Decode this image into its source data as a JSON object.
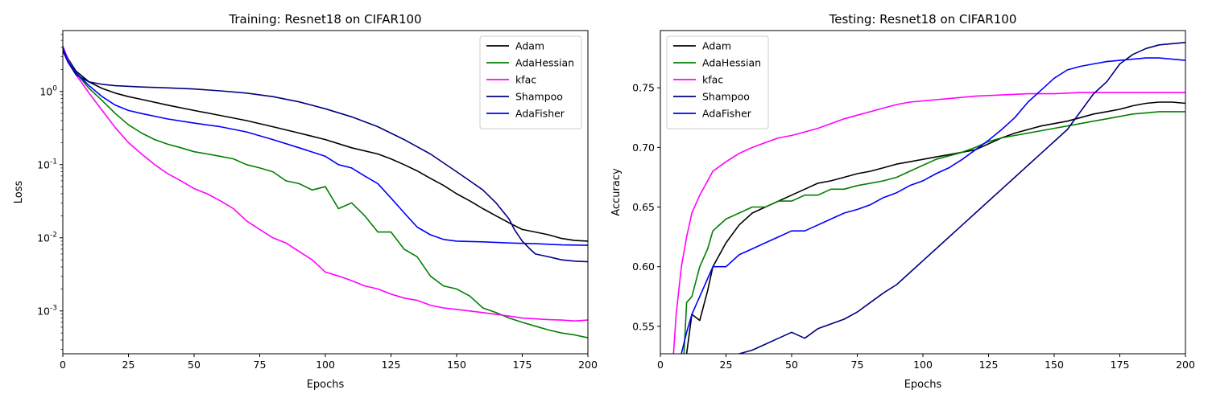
{
  "chart_data": [
    {
      "type": "line",
      "title": "Training: Resnet18 on CIFAR100",
      "xlabel": "Epochs",
      "ylabel": "Loss",
      "yscale": "log",
      "xlim": [
        0,
        200
      ],
      "ylim": [
        0.00026,
        6.8
      ],
      "xticks": [
        0,
        25,
        50,
        75,
        100,
        125,
        150,
        175,
        200
      ],
      "yticks": [
        0.001,
        0.01,
        0.1,
        1
      ],
      "ytick_labels": [
        "10^-3",
        "10^-2",
        "10^-1",
        "10^0"
      ],
      "grid": false,
      "legend_position": "upper right",
      "series": [
        {
          "name": "Adam",
          "color": "#000000",
          "x": [
            0,
            2,
            5,
            10,
            15,
            20,
            25,
            30,
            40,
            50,
            60,
            70,
            80,
            90,
            100,
            110,
            120,
            125,
            130,
            135,
            140,
            145,
            150,
            155,
            160,
            165,
            170,
            175,
            180,
            185,
            190,
            195,
            200
          ],
          "y": [
            4.0,
            2.8,
            1.9,
            1.35,
            1.1,
            0.95,
            0.85,
            0.78,
            0.65,
            0.55,
            0.47,
            0.4,
            0.33,
            0.27,
            0.22,
            0.17,
            0.14,
            0.12,
            0.1,
            0.082,
            0.065,
            0.052,
            0.04,
            0.032,
            0.025,
            0.02,
            0.016,
            0.013,
            0.012,
            0.011,
            0.0098,
            0.0092,
            0.009
          ]
        },
        {
          "name": "AdaHessian",
          "color": "#008000",
          "x": [
            0,
            2,
            5,
            10,
            15,
            20,
            25,
            30,
            35,
            40,
            45,
            50,
            55,
            60,
            65,
            70,
            75,
            80,
            85,
            90,
            95,
            100,
            105,
            110,
            115,
            120,
            125,
            130,
            135,
            140,
            145,
            150,
            155,
            160,
            165,
            170,
            175,
            180,
            185,
            190,
            195,
            200
          ],
          "y": [
            4.0,
            2.7,
            1.8,
            1.1,
            0.75,
            0.5,
            0.35,
            0.27,
            0.22,
            0.19,
            0.17,
            0.15,
            0.14,
            0.13,
            0.12,
            0.1,
            0.09,
            0.08,
            0.06,
            0.055,
            0.045,
            0.05,
            0.025,
            0.03,
            0.02,
            0.012,
            0.012,
            0.007,
            0.0055,
            0.003,
            0.0022,
            0.002,
            0.0016,
            0.0011,
            0.00095,
            0.0008,
            0.0007,
            0.00062,
            0.00055,
            0.0005,
            0.00047,
            0.00043
          ]
        },
        {
          "name": "kfac",
          "color": "#ff00ff",
          "x": [
            0,
            2,
            5,
            10,
            15,
            20,
            25,
            30,
            35,
            40,
            45,
            50,
            55,
            60,
            65,
            70,
            75,
            80,
            85,
            90,
            95,
            100,
            105,
            110,
            115,
            120,
            125,
            130,
            135,
            140,
            145,
            150,
            155,
            160,
            165,
            170,
            175,
            180,
            185,
            190,
            195,
            200
          ],
          "y": [
            4.2,
            2.7,
            1.7,
            0.95,
            0.55,
            0.32,
            0.2,
            0.14,
            0.1,
            0.075,
            0.06,
            0.047,
            0.04,
            0.032,
            0.025,
            0.017,
            0.013,
            0.01,
            0.0085,
            0.0065,
            0.005,
            0.0034,
            0.003,
            0.0026,
            0.0022,
            0.002,
            0.0017,
            0.0015,
            0.0014,
            0.0012,
            0.0011,
            0.00105,
            0.001,
            0.00095,
            0.0009,
            0.00085,
            0.0008,
            0.00078,
            0.00076,
            0.00075,
            0.00073,
            0.00075
          ]
        },
        {
          "name": "Shampoo",
          "color": "#000080",
          "x": [
            0,
            2,
            5,
            10,
            15,
            20,
            30,
            40,
            50,
            60,
            70,
            80,
            90,
            100,
            110,
            120,
            130,
            140,
            150,
            155,
            160,
            165,
            170,
            172,
            175,
            178,
            180,
            185,
            190,
            195,
            200
          ],
          "y": [
            3.6,
            2.5,
            1.7,
            1.35,
            1.25,
            1.2,
            1.15,
            1.12,
            1.08,
            1.02,
            0.95,
            0.85,
            0.72,
            0.58,
            0.45,
            0.33,
            0.22,
            0.14,
            0.08,
            0.06,
            0.045,
            0.03,
            0.018,
            0.013,
            0.009,
            0.007,
            0.006,
            0.0055,
            0.005,
            0.0048,
            0.0047
          ]
        },
        {
          "name": "AdaFisher",
          "color": "#0000ff",
          "x": [
            0,
            2,
            5,
            10,
            15,
            20,
            25,
            30,
            40,
            50,
            60,
            70,
            80,
            90,
            100,
            105,
            110,
            115,
            120,
            125,
            130,
            135,
            140,
            145,
            150,
            160,
            170,
            180,
            190,
            200
          ],
          "y": [
            4.0,
            2.6,
            1.8,
            1.2,
            0.85,
            0.65,
            0.55,
            0.5,
            0.42,
            0.37,
            0.33,
            0.28,
            0.22,
            0.17,
            0.13,
            0.1,
            0.09,
            0.07,
            0.055,
            0.035,
            0.022,
            0.014,
            0.011,
            0.0095,
            0.009,
            0.0088,
            0.0085,
            0.0083,
            0.008,
            0.0079
          ]
        }
      ]
    },
    {
      "type": "line",
      "title": "Testing: Resnet18 on CIFAR100",
      "xlabel": "Epochs",
      "ylabel": "Accuracy",
      "xlim": [
        0,
        200
      ],
      "ylim": [
        0.527,
        0.798
      ],
      "xticks": [
        0,
        25,
        50,
        75,
        100,
        125,
        150,
        175,
        200
      ],
      "yticks": [
        0.55,
        0.6,
        0.65,
        0.7,
        0.75
      ],
      "ytick_labels": [
        "0.55",
        "0.60",
        "0.65",
        "0.70",
        "0.75"
      ],
      "grid": false,
      "legend_position": "upper left",
      "series": [
        {
          "name": "Adam",
          "color": "#000000",
          "x": [
            10,
            12,
            15,
            18,
            20,
            25,
            30,
            35,
            40,
            45,
            50,
            55,
            60,
            65,
            70,
            75,
            80,
            85,
            90,
            95,
            100,
            105,
            110,
            115,
            120,
            125,
            130,
            135,
            140,
            145,
            150,
            155,
            160,
            165,
            170,
            175,
            180,
            185,
            190,
            195,
            200
          ],
          "y": [
            0.527,
            0.56,
            0.555,
            0.58,
            0.6,
            0.62,
            0.635,
            0.645,
            0.65,
            0.655,
            0.66,
            0.665,
            0.67,
            0.672,
            0.675,
            0.678,
            0.68,
            0.683,
            0.686,
            0.688,
            0.69,
            0.692,
            0.694,
            0.696,
            0.698,
            0.703,
            0.708,
            0.712,
            0.715,
            0.718,
            0.72,
            0.722,
            0.725,
            0.728,
            0.73,
            0.732,
            0.735,
            0.737,
            0.738,
            0.738,
            0.737
          ]
        },
        {
          "name": "AdaHessian",
          "color": "#008000",
          "x": [
            9,
            10,
            12,
            15,
            18,
            20,
            25,
            30,
            35,
            40,
            45,
            50,
            55,
            60,
            65,
            70,
            75,
            80,
            85,
            90,
            95,
            100,
            105,
            110,
            115,
            120,
            125,
            130,
            135,
            140,
            145,
            150,
            155,
            160,
            165,
            170,
            175,
            180,
            185,
            190,
            195,
            200
          ],
          "y": [
            0.527,
            0.57,
            0.575,
            0.6,
            0.615,
            0.63,
            0.64,
            0.645,
            0.65,
            0.65,
            0.655,
            0.655,
            0.66,
            0.66,
            0.665,
            0.665,
            0.668,
            0.67,
            0.672,
            0.675,
            0.68,
            0.685,
            0.69,
            0.693,
            0.696,
            0.7,
            0.705,
            0.708,
            0.71,
            0.712,
            0.714,
            0.716,
            0.718,
            0.72,
            0.722,
            0.724,
            0.726,
            0.728,
            0.729,
            0.73,
            0.73,
            0.73
          ]
        },
        {
          "name": "kfac",
          "color": "#ff00ff",
          "x": [
            5,
            6,
            8,
            10,
            12,
            15,
            18,
            20,
            25,
            30,
            35,
            40,
            45,
            50,
            55,
            60,
            65,
            70,
            75,
            80,
            85,
            90,
            95,
            100,
            110,
            120,
            130,
            140,
            150,
            160,
            170,
            180,
            190,
            200
          ],
          "y": [
            0.527,
            0.56,
            0.6,
            0.625,
            0.645,
            0.66,
            0.672,
            0.68,
            0.688,
            0.695,
            0.7,
            0.704,
            0.708,
            0.71,
            0.713,
            0.716,
            0.72,
            0.724,
            0.727,
            0.73,
            0.733,
            0.736,
            0.738,
            0.739,
            0.741,
            0.743,
            0.744,
            0.745,
            0.745,
            0.746,
            0.746,
            0.746,
            0.746,
            0.746
          ]
        },
        {
          "name": "Shampoo",
          "color": "#000080",
          "x": [
            30,
            35,
            40,
            45,
            50,
            55,
            60,
            65,
            70,
            75,
            80,
            85,
            90,
            95,
            100,
            105,
            110,
            115,
            120,
            125,
            130,
            135,
            140,
            145,
            150,
            155,
            160,
            165,
            170,
            175,
            180,
            185,
            190,
            195,
            200
          ],
          "y": [
            0.527,
            0.53,
            0.535,
            0.54,
            0.545,
            0.54,
            0.548,
            0.552,
            0.556,
            0.562,
            0.57,
            0.578,
            0.585,
            0.595,
            0.605,
            0.615,
            0.625,
            0.635,
            0.645,
            0.655,
            0.665,
            0.675,
            0.685,
            0.695,
            0.705,
            0.715,
            0.73,
            0.745,
            0.755,
            0.77,
            0.778,
            0.783,
            0.786,
            0.787,
            0.788
          ]
        },
        {
          "name": "AdaFisher",
          "color": "#0000ff",
          "x": [
            8,
            10,
            12,
            15,
            18,
            20,
            25,
            30,
            35,
            40,
            45,
            50,
            55,
            60,
            65,
            70,
            75,
            80,
            85,
            90,
            95,
            100,
            105,
            110,
            115,
            120,
            125,
            130,
            135,
            140,
            145,
            150,
            155,
            160,
            165,
            170,
            175,
            180,
            185,
            190,
            195,
            200
          ],
          "y": [
            0.527,
            0.545,
            0.56,
            0.575,
            0.59,
            0.6,
            0.6,
            0.61,
            0.615,
            0.62,
            0.625,
            0.63,
            0.63,
            0.635,
            0.64,
            0.645,
            0.648,
            0.652,
            0.658,
            0.662,
            0.668,
            0.672,
            0.678,
            0.683,
            0.69,
            0.698,
            0.706,
            0.715,
            0.725,
            0.738,
            0.748,
            0.758,
            0.765,
            0.768,
            0.77,
            0.772,
            0.773,
            0.774,
            0.775,
            0.775,
            0.774,
            0.773
          ]
        }
      ]
    }
  ]
}
